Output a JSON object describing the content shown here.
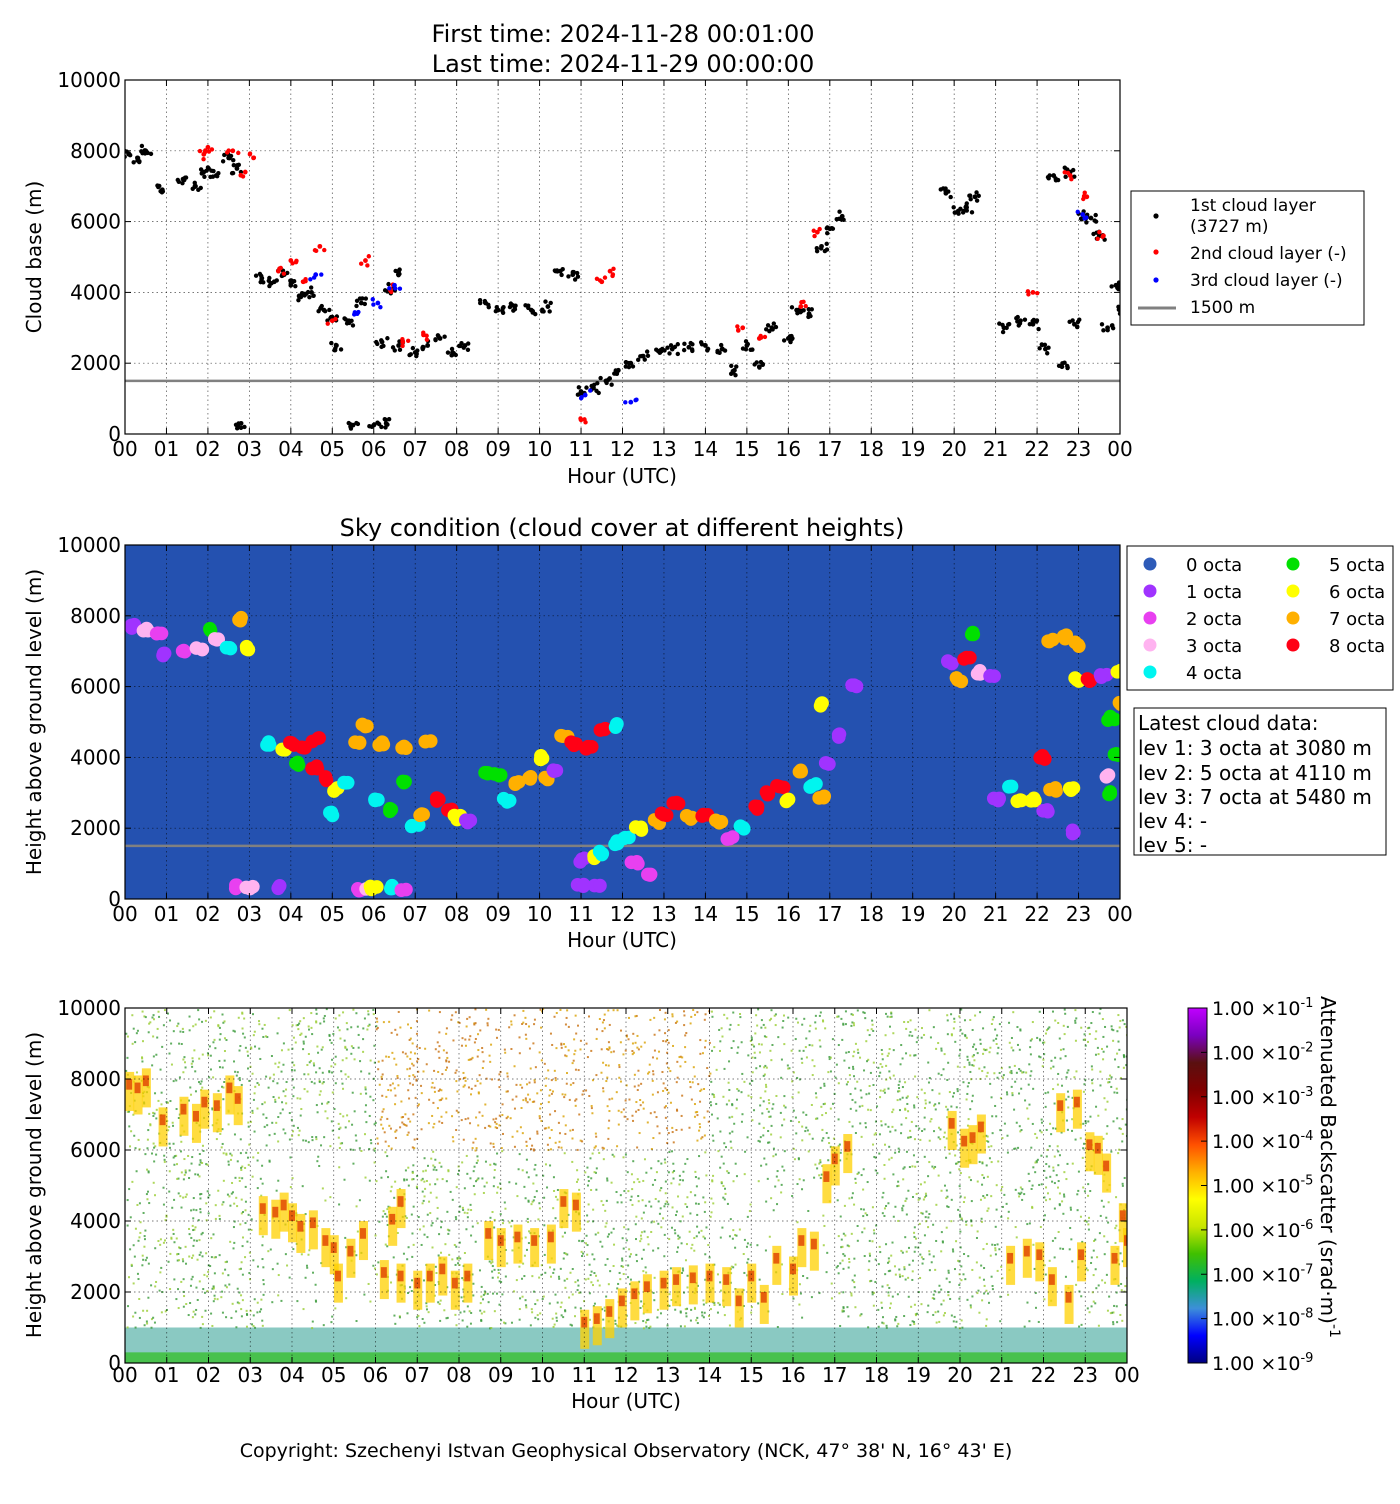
{
  "header": {
    "first_time": "First time: 2024-11-28 00:01:00",
    "last_time": "Last time: 2024-11-29 00:00:00"
  },
  "colors": {
    "layer1": "#000000",
    "layer2": "#ff0000",
    "layer3": "#0000ff",
    "ref_line": "#808080",
    "sky_bg": "#2451b0",
    "octa": [
      "#2e5bb8",
      "#a033ff",
      "#e840f0",
      "#ffb3f0",
      "#00f5f0",
      "#00e000",
      "#ffff00",
      "#ffb000",
      "#ff0015"
    ]
  },
  "chart_data": [
    {
      "type": "scatter",
      "title": "",
      "xlabel": "Hour (UTC)",
      "ylabel": "Cloud base (m)",
      "xlim": [
        0,
        24
      ],
      "ylim": [
        0,
        10000
      ],
      "xticks": [
        "00",
        "01",
        "02",
        "03",
        "04",
        "05",
        "06",
        "07",
        "08",
        "09",
        "10",
        "11",
        "12",
        "13",
        "14",
        "15",
        "16",
        "17",
        "18",
        "19",
        "20",
        "21",
        "22",
        "23",
        "00"
      ],
      "yticks": [
        "0",
        "2000",
        "4000",
        "6000",
        "8000",
        "10000"
      ],
      "grid": true,
      "legend_position": "right",
      "legend": [
        "1st cloud layer",
        "(3727 m)",
        "2nd cloud layer (-)",
        "3rd cloud layer (-)",
        "1500 m"
      ],
      "reference_line": 1500,
      "series": [
        {
          "name": "1st cloud layer",
          "points": [
            [
              0.1,
              7900
            ],
            [
              0.3,
              7800
            ],
            [
              0.5,
              8000
            ],
            [
              0.9,
              6900
            ],
            [
              1.4,
              7200
            ],
            [
              1.7,
              7000
            ],
            [
              1.9,
              7400
            ],
            [
              2.2,
              7300
            ],
            [
              2.5,
              7800
            ],
            [
              2.7,
              7500
            ],
            [
              2.8,
              300
            ],
            [
              3.3,
              4400
            ],
            [
              3.6,
              4300
            ],
            [
              3.8,
              4500
            ],
            [
              4.0,
              4200
            ],
            [
              4.2,
              3900
            ],
            [
              4.5,
              4000
            ],
            [
              4.8,
              3500
            ],
            [
              5.0,
              3300
            ],
            [
              5.1,
              2500
            ],
            [
              5.4,
              3200
            ],
            [
              5.7,
              3700
            ],
            [
              5.5,
              250
            ],
            [
              6.0,
              250
            ],
            [
              6.3,
              300
            ],
            [
              6.4,
              4100
            ],
            [
              6.6,
              4600
            ],
            [
              6.2,
              2600
            ],
            [
              6.6,
              2500
            ],
            [
              7.0,
              2300
            ],
            [
              7.3,
              2500
            ],
            [
              7.6,
              2700
            ],
            [
              7.9,
              2300
            ],
            [
              8.2,
              2500
            ],
            [
              8.7,
              3700
            ],
            [
              9.0,
              3500
            ],
            [
              9.4,
              3600
            ],
            [
              9.8,
              3500
            ],
            [
              10.2,
              3600
            ],
            [
              10.5,
              4600
            ],
            [
              10.8,
              4500
            ],
            [
              11.0,
              1200
            ],
            [
              11.3,
              1300
            ],
            [
              11.6,
              1500
            ],
            [
              11.9,
              1800
            ],
            [
              12.2,
              2000
            ],
            [
              12.5,
              2200
            ],
            [
              12.9,
              2300
            ],
            [
              13.2,
              2400
            ],
            [
              13.6,
              2450
            ],
            [
              14.0,
              2500
            ],
            [
              14.4,
              2400
            ],
            [
              14.7,
              1800
            ],
            [
              15.0,
              2500
            ],
            [
              15.3,
              1900
            ],
            [
              15.6,
              3000
            ],
            [
              16.0,
              2700
            ],
            [
              16.2,
              3500
            ],
            [
              16.5,
              3400
            ],
            [
              16.8,
              5300
            ],
            [
              17.0,
              5800
            ],
            [
              17.3,
              6150
            ],
            [
              19.8,
              6800
            ],
            [
              20.1,
              6300
            ],
            [
              20.3,
              6400
            ],
            [
              20.5,
              6700
            ],
            [
              21.2,
              3000
            ],
            [
              21.6,
              3200
            ],
            [
              21.9,
              3100
            ],
            [
              22.2,
              2400
            ],
            [
              22.4,
              7300
            ],
            [
              22.6,
              1900
            ],
            [
              22.8,
              7400
            ],
            [
              22.9,
              3100
            ],
            [
              23.1,
              6200
            ],
            [
              23.3,
              6100
            ],
            [
              23.5,
              5600
            ],
            [
              23.7,
              3000
            ],
            [
              23.9,
              4200
            ],
            [
              24.0,
              3500
            ]
          ]
        },
        {
          "name": "2nd cloud layer (-)",
          "points": [
            [
              1.9,
              7900
            ],
            [
              2.0,
              8100
            ],
            [
              2.6,
              8000
            ],
            [
              2.9,
              7400
            ],
            [
              3.1,
              7800
            ],
            [
              3.7,
              4600
            ],
            [
              4.0,
              4900
            ],
            [
              4.3,
              4300
            ],
            [
              4.7,
              5300
            ],
            [
              5.0,
              3200
            ],
            [
              5.8,
              4900
            ],
            [
              6.4,
              4100
            ],
            [
              6.7,
              2600
            ],
            [
              7.2,
              2800
            ],
            [
              11.0,
              400
            ],
            [
              11.5,
              4300
            ],
            [
              11.7,
              4600
            ],
            [
              14.9,
              3000
            ],
            [
              15.3,
              2700
            ],
            [
              16.3,
              3600
            ],
            [
              16.7,
              5700
            ],
            [
              21.9,
              4000
            ],
            [
              22.8,
              7300
            ],
            [
              23.2,
              6700
            ],
            [
              23.6,
              5600
            ]
          ]
        },
        {
          "name": "3rd cloud layer (-)",
          "points": [
            [
              4.6,
              4500
            ],
            [
              5.6,
              3400
            ],
            [
              6.1,
              3700
            ],
            [
              6.5,
              4200
            ],
            [
              11.1,
              1100
            ],
            [
              12.2,
              900
            ],
            [
              23.1,
              6200
            ]
          ]
        }
      ]
    },
    {
      "type": "scatter",
      "title": "Sky condition (cloud cover at different heights)",
      "xlabel": "Hour (UTC)",
      "ylabel": "Height above ground level (m)",
      "xlim": [
        0,
        24
      ],
      "ylim": [
        0,
        10000
      ],
      "xticks": [
        "00",
        "01",
        "02",
        "03",
        "04",
        "05",
        "06",
        "07",
        "08",
        "09",
        "10",
        "11",
        "12",
        "13",
        "14",
        "15",
        "16",
        "17",
        "18",
        "19",
        "20",
        "21",
        "22",
        "23",
        "00"
      ],
      "yticks": [
        "0",
        "2000",
        "4000",
        "6000",
        "8000",
        "10000"
      ],
      "grid": true,
      "legend_position": "right",
      "legend": [
        "0 octa",
        "1 octa",
        "2 octa",
        "3 octa",
        "4 octa",
        "5 octa",
        "6 octa",
        "7 octa",
        "8 octa"
      ],
      "reference_line": 1500,
      "points": [
        [
          0.2,
          7700,
          1
        ],
        [
          0.5,
          7600,
          3
        ],
        [
          0.8,
          7500,
          2
        ],
        [
          1.0,
          6900,
          1
        ],
        [
          1.4,
          7000,
          2
        ],
        [
          1.8,
          7100,
          3
        ],
        [
          2.0,
          7600,
          5
        ],
        [
          2.2,
          7300,
          3
        ],
        [
          2.5,
          7100,
          4
        ],
        [
          2.8,
          7900,
          7
        ],
        [
          2.9,
          7100,
          6
        ],
        [
          2.7,
          350,
          2
        ],
        [
          3.0,
          350,
          3
        ],
        [
          3.7,
          350,
          1
        ],
        [
          3.4,
          4400,
          4
        ],
        [
          3.8,
          4200,
          6
        ],
        [
          4.0,
          4400,
          8
        ],
        [
          4.3,
          4300,
          8
        ],
        [
          4.6,
          4500,
          8
        ],
        [
          4.2,
          3800,
          5
        ],
        [
          4.6,
          3700,
          8
        ],
        [
          4.9,
          3400,
          8
        ],
        [
          5.1,
          3100,
          6
        ],
        [
          5.3,
          3300,
          4
        ],
        [
          5.0,
          2400,
          4
        ],
        [
          5.6,
          4400,
          7
        ],
        [
          5.8,
          4900,
          7
        ],
        [
          6.2,
          4400,
          7
        ],
        [
          6.7,
          4300,
          7
        ],
        [
          7.3,
          4500,
          7
        ],
        [
          5.6,
          280,
          2
        ],
        [
          5.9,
          300,
          3
        ],
        [
          6.0,
          300,
          6
        ],
        [
          6.4,
          320,
          4
        ],
        [
          6.7,
          300,
          2
        ],
        [
          6.1,
          2800,
          4
        ],
        [
          6.4,
          2500,
          5
        ],
        [
          6.7,
          3300,
          5
        ],
        [
          7.0,
          2100,
          4
        ],
        [
          7.2,
          2400,
          7
        ],
        [
          7.5,
          2800,
          8
        ],
        [
          7.8,
          2500,
          8
        ],
        [
          8.0,
          2300,
          6
        ],
        [
          8.3,
          2200,
          1
        ],
        [
          8.7,
          3600,
          5
        ],
        [
          9.0,
          3500,
          5
        ],
        [
          9.2,
          2800,
          4
        ],
        [
          9.5,
          3300,
          7
        ],
        [
          9.8,
          3400,
          7
        ],
        [
          10.2,
          3400,
          7
        ],
        [
          10.4,
          3600,
          1
        ],
        [
          10.0,
          4000,
          6
        ],
        [
          10.6,
          4600,
          7
        ],
        [
          10.8,
          4400,
          8
        ],
        [
          11.2,
          4300,
          8
        ],
        [
          11.5,
          4800,
          8
        ],
        [
          11.9,
          4900,
          4
        ],
        [
          11.0,
          1100,
          1
        ],
        [
          11.3,
          1200,
          6
        ],
        [
          11.5,
          1300,
          4
        ],
        [
          11.8,
          1600,
          4
        ],
        [
          12.1,
          1700,
          4
        ],
        [
          12.4,
          2000,
          6
        ],
        [
          12.3,
          1000,
          2
        ],
        [
          12.6,
          700,
          2
        ],
        [
          11.0,
          350,
          1
        ],
        [
          11.4,
          350,
          1
        ],
        [
          12.8,
          2200,
          7
        ],
        [
          13.0,
          2400,
          8
        ],
        [
          13.3,
          2700,
          8
        ],
        [
          13.6,
          2300,
          7
        ],
        [
          14.0,
          2400,
          8
        ],
        [
          14.3,
          2200,
          7
        ],
        [
          14.6,
          1700,
          2
        ],
        [
          14.9,
          2000,
          4
        ],
        [
          15.2,
          2600,
          8
        ],
        [
          15.5,
          3000,
          8
        ],
        [
          15.8,
          3200,
          8
        ],
        [
          16.0,
          2800,
          6
        ],
        [
          16.3,
          3600,
          7
        ],
        [
          16.6,
          3200,
          4
        ],
        [
          16.8,
          2900,
          7
        ],
        [
          16.9,
          3800,
          1
        ],
        [
          17.2,
          4600,
          1
        ],
        [
          17.6,
          6000,
          1
        ],
        [
          16.8,
          5500,
          6
        ],
        [
          19.9,
          6700,
          1
        ],
        [
          20.1,
          6200,
          7
        ],
        [
          20.3,
          6800,
          8
        ],
        [
          20.4,
          7500,
          5
        ],
        [
          20.6,
          6400,
          3
        ],
        [
          20.9,
          6300,
          1
        ],
        [
          21.0,
          2800,
          1
        ],
        [
          21.3,
          3200,
          4
        ],
        [
          21.6,
          2800,
          6
        ],
        [
          21.9,
          2800,
          6
        ],
        [
          22.2,
          2500,
          1
        ],
        [
          22.4,
          3100,
          7
        ],
        [
          22.8,
          3100,
          6
        ],
        [
          22.1,
          4000,
          8
        ],
        [
          22.3,
          7300,
          7
        ],
        [
          22.7,
          7400,
          7
        ],
        [
          23.0,
          7200,
          7
        ],
        [
          22.8,
          1900,
          1
        ],
        [
          23.0,
          6200,
          6
        ],
        [
          23.3,
          6200,
          8
        ],
        [
          23.6,
          6300,
          1
        ],
        [
          23.7,
          3500,
          3
        ],
        [
          23.8,
          5100,
          5
        ],
        [
          23.9,
          4100,
          5
        ],
        [
          23.8,
          3000,
          5
        ],
        [
          24.0,
          6400,
          6
        ],
        [
          24.0,
          5500,
          7
        ]
      ],
      "latest_cloud_data": {
        "title": "Latest cloud data:",
        "levels": [
          "lev 1: 3 octa at 3080 m",
          "lev 2: 5 octa at 4110 m",
          "lev 3: 7 octa at 5480 m",
          "lev 4: -",
          "lev 5: -"
        ]
      }
    },
    {
      "type": "heatmap",
      "title": "",
      "xlabel": "Hour (UTC)",
      "ylabel": "Height above ground level (m)",
      "xlim": [
        0,
        24
      ],
      "ylim": [
        0,
        10000
      ],
      "xticks": [
        "00",
        "01",
        "02",
        "03",
        "04",
        "05",
        "06",
        "07",
        "08",
        "09",
        "10",
        "11",
        "12",
        "13",
        "14",
        "15",
        "16",
        "17",
        "18",
        "19",
        "20",
        "21",
        "22",
        "23",
        "00"
      ],
      "yticks": [
        "0",
        "2000",
        "4000",
        "6000",
        "8000",
        "10000"
      ],
      "colorbar_label": "Attenuated Backscatter (srad·m)",
      "colorbar_exponent": "-1",
      "colorbar_ticks": [
        {
          "mant": "1.00",
          "exp": "-1"
        },
        {
          "mant": "1.00",
          "exp": "-2"
        },
        {
          "mant": "1.00",
          "exp": "-3"
        },
        {
          "mant": "1.00",
          "exp": "-4"
        },
        {
          "mant": "1.00",
          "exp": "-5"
        },
        {
          "mant": "1.00",
          "exp": "-6"
        },
        {
          "mant": "1.00",
          "exp": "-7"
        },
        {
          "mant": "1.00",
          "exp": "-8"
        },
        {
          "mant": "1.00",
          "exp": "-9"
        }
      ],
      "colorscale": [
        "#000080",
        "#0000ff",
        "#3d8fd9",
        "#00b060",
        "#40c000",
        "#c8e600",
        "#ffff00",
        "#ffb000",
        "#ff5000",
        "#c00000",
        "#800000",
        "#5a1010",
        "#7a00c0",
        "#c000ff"
      ]
    }
  ],
  "footer": {
    "copyright": "Copyright: Szechenyi Istvan Geophysical Observatory (NCK, 47° 38' N, 16° 43' E)"
  }
}
